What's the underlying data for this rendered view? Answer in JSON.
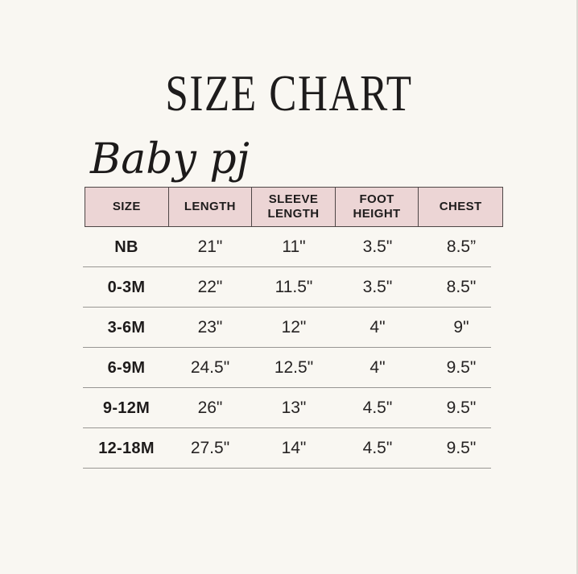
{
  "page": {
    "title": "SIZE CHART",
    "brand_script": "Baby pj",
    "background_color": "#f9f7f2"
  },
  "size_chart": {
    "header_background": "#ecd5d5",
    "header_border_color": "#4e4646",
    "row_separator_color": "#989693",
    "columns": [
      "SIZE",
      "LENGTH",
      "SLEEVE LENGTH",
      "FOOT HEIGHT",
      "CHEST"
    ],
    "rows": [
      {
        "size": "NB",
        "length": "21\"",
        "sleeve_length": "11\"",
        "foot_height": "3.5\"",
        "chest": "8.5”"
      },
      {
        "size": "0-3M",
        "length": "22\"",
        "sleeve_length": "11.5\"",
        "foot_height": "3.5\"",
        "chest": "8.5\""
      },
      {
        "size": "3-6M",
        "length": "23\"",
        "sleeve_length": "12\"",
        "foot_height": "4\"",
        "chest": "9\""
      },
      {
        "size": "6-9M",
        "length": "24.5\"",
        "sleeve_length": "12.5\"",
        "foot_height": "4\"",
        "chest": "9.5\""
      },
      {
        "size": "9-12M",
        "length": "26\"",
        "sleeve_length": "13\"",
        "foot_height": "4.5\"",
        "chest": "9.5\""
      },
      {
        "size": "12-18M",
        "length": "27.5\"",
        "sleeve_length": "14\"",
        "foot_height": "4.5\"",
        "chest": "9.5\""
      }
    ]
  }
}
